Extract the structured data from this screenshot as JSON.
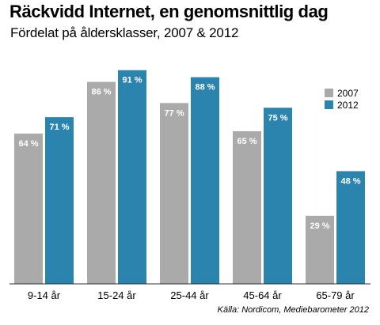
{
  "chart_data": {
    "type": "bar",
    "title": "Räckvidd Internet, en genomsnittlig dag",
    "subtitle": "Fördelat på åldersklasser, 2007 & 2012",
    "categories": [
      "9-14 år",
      "15-24 år",
      "25-44 år",
      "45-64 år",
      "65-79 år"
    ],
    "series": [
      {
        "name": "2007",
        "color": "#aaaaaa",
        "values": [
          64,
          86,
          77,
          65,
          29
        ],
        "labels": [
          "64 %",
          "86 %",
          "77 %",
          "65 %",
          "29 %"
        ]
      },
      {
        "name": "2012",
        "color": "#2a84ad",
        "values": [
          71,
          91,
          88,
          75,
          48
        ],
        "labels": [
          "71 %",
          "91 %",
          "88 %",
          "75 %",
          "48 %"
        ]
      }
    ],
    "ylim": [
      0,
      100
    ],
    "legend_position": "right",
    "grid": false,
    "source": "Källa: Nordicom, Mediebarometer 2012"
  }
}
